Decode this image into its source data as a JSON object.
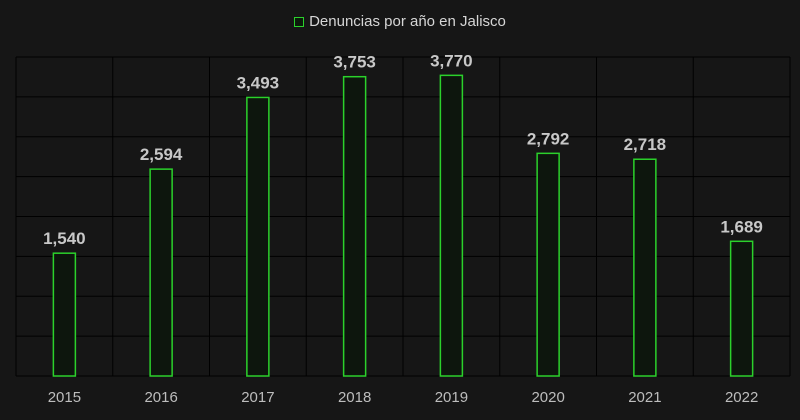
{
  "colors": {
    "background": "#161616",
    "bar_stroke": "#2bd12b",
    "bar_fill": "#0d160d",
    "grid": "#000000",
    "label": "#c8c8c8",
    "tick": "#bdbdbd"
  },
  "chart_data": {
    "type": "bar",
    "categories": [
      "2015",
      "2016",
      "2017",
      "2018",
      "2019",
      "2020",
      "2021",
      "2022"
    ],
    "series": [
      {
        "name": "Denuncias por año en Jalisco",
        "values": [
          1540,
          2594,
          3493,
          3753,
          3770,
          2792,
          2718,
          1689
        ],
        "value_labels": [
          "1,540",
          "2,594",
          "3,493",
          "3,753",
          "3,770",
          "2,792",
          "2,718",
          "1,689"
        ]
      }
    ],
    "ylim": [
      0,
      4000
    ],
    "grid": true,
    "legend_position": "top-center"
  }
}
